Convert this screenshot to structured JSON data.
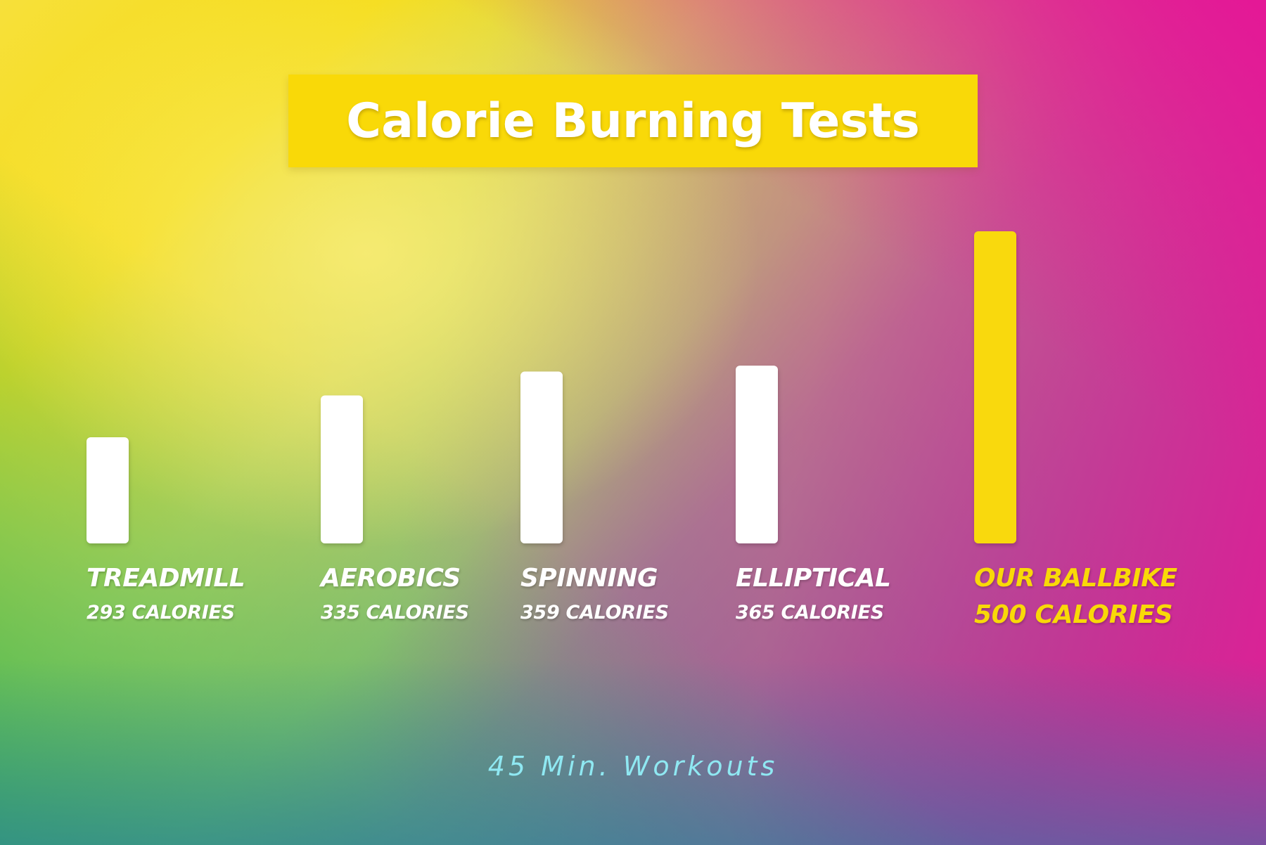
{
  "colors": {
    "bar_default": "#ffffff",
    "bar_highlight": "#f9d908",
    "title_bg": "#f9d908",
    "title_text": "#ffffff",
    "footnote_text": "#8fe8f2"
  },
  "chart_data": {
    "type": "bar",
    "title": "Calorie Burning Tests",
    "categories": [
      "TREADMILL",
      "AEROBICS",
      "SPINNING",
      "ELLIPTICAL",
      "OUR BALLBIKE"
    ],
    "values": [
      293,
      335,
      359,
      365,
      500
    ],
    "value_labels": [
      "293 CALORIES",
      "335 CALORIES",
      "359 CALORIES",
      "365 CALORIES",
      "500 CALORIES"
    ],
    "highlight_index": 4,
    "ylim": [
      0,
      500
    ],
    "grid": false,
    "axes_visible": false,
    "footnote": "45 Min. Workouts"
  }
}
